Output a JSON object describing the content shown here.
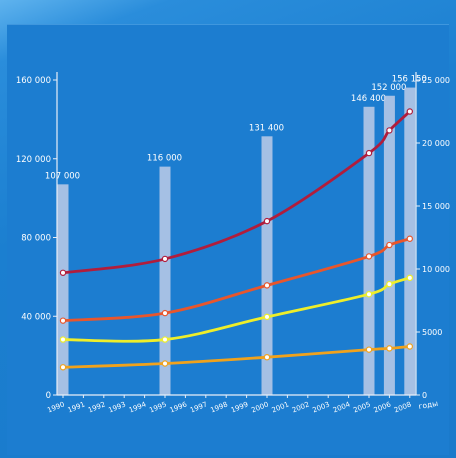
{
  "chart_data": {
    "type": "bar+line",
    "x_ticks": [
      "1990",
      "1991",
      "1992",
      "1993",
      "1994",
      "1995",
      "1996",
      "1997",
      "1998",
      "1999",
      "2000",
      "2001",
      "2002",
      "2003",
      "2004",
      "2005",
      "2006",
      "2008"
    ],
    "x_unit_label": "годы",
    "y_left": {
      "ticks": [
        "0",
        "40 000",
        "80 000",
        "120 000",
        "160 000"
      ],
      "lim": [
        0,
        160000
      ]
    },
    "y_right": {
      "ticks": [
        "0",
        "5000",
        "10 000",
        "15 000",
        "20 000",
        "25 000"
      ],
      "lim": [
        0,
        25000
      ]
    },
    "bars": {
      "axis": "left",
      "color": "#b8c9e6",
      "points": [
        {
          "x": "1990",
          "value": 107000,
          "label": "107 000"
        },
        {
          "x": "1995",
          "value": 116000,
          "label": "116 000"
        },
        {
          "x": "2000",
          "value": 131400,
          "label": "131 400"
        },
        {
          "x": "2005",
          "value": 146400,
          "label": "146 400"
        },
        {
          "x": "2006",
          "value": 152000,
          "label": "152 000"
        },
        {
          "x": "2008",
          "value": 156150,
          "label": "156 150"
        }
      ]
    },
    "series": [
      {
        "axis": "right",
        "color": "#b11d3c",
        "x": [
          "1990",
          "1995",
          "2000",
          "2005",
          "2006",
          "2008"
        ],
        "values": [
          9700,
          10800,
          13800,
          19200,
          21000,
          22500
        ]
      },
      {
        "axis": "right",
        "color": "#e8562c",
        "x": [
          "1990",
          "1995",
          "2000",
          "2005",
          "2006",
          "2008"
        ],
        "values": [
          5900,
          6500,
          8700,
          11000,
          11900,
          12400
        ]
      },
      {
        "axis": "right",
        "color": "#eeee2a",
        "x": [
          "1990",
          "1995",
          "2000",
          "2005",
          "2006",
          "2008"
        ],
        "values": [
          4400,
          4400,
          6200,
          8000,
          8800,
          9300
        ]
      },
      {
        "axis": "right",
        "color": "#f0a21c",
        "x": [
          "1990",
          "1995",
          "2000",
          "2005",
          "2006",
          "2008"
        ],
        "values": [
          2200,
          2500,
          3000,
          3600,
          3700,
          3850
        ]
      }
    ],
    "grid": false,
    "legend": "none"
  },
  "colors": {
    "background": "#1c7dd0",
    "axis": "#e8eef8",
    "text": "#ffffff"
  }
}
